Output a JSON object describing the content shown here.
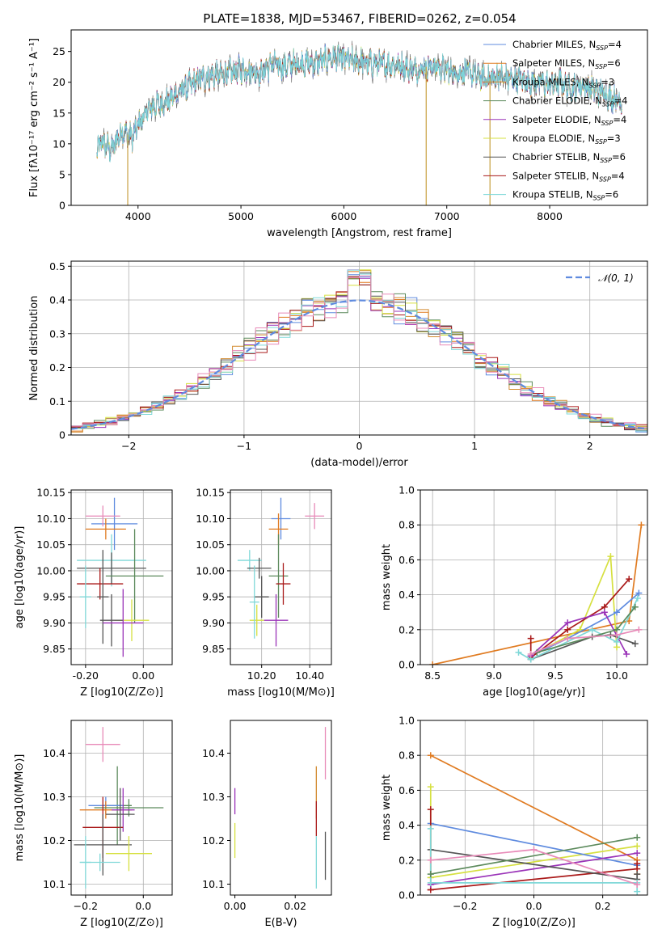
{
  "title": "PLATE=1838, MJD=53467, FIBERID=0262, z=0.054",
  "colors": [
    "#5f8bdf",
    "#e07b21",
    "#d28a2f",
    "#5c8a5c",
    "#9a33b8",
    "#d6e040",
    "#555555",
    "#aa1a1a",
    "#7fd8d8",
    "#e88ab8"
  ],
  "chart_data": [
    {
      "id": "spectrum",
      "type": "line",
      "xlabel": "wavelength [Angstrom, rest frame]",
      "ylabel": "Flux [fλ10⁻¹⁷ erg cm⁻² s⁻¹ A⁻¹]",
      "xlim": [
        3350,
        8950
      ],
      "ylim": [
        0,
        28.5
      ],
      "xticks": [
        4000,
        5000,
        6000,
        7000,
        8000
      ],
      "yticks": [
        0,
        5,
        10,
        15,
        20,
        25
      ],
      "grid": false,
      "legend_position": "right",
      "continuum_x": [
        3600,
        3650,
        3700,
        3750,
        3800,
        3850,
        3900,
        3950,
        4000,
        4100,
        4200,
        4300,
        4400,
        4500,
        4600,
        4700,
        4800,
        4900,
        5000,
        5100,
        5200,
        5300,
        5400,
        5500,
        5600,
        5700,
        5800,
        5900,
        6000,
        6100,
        6200,
        6300,
        6400,
        6500,
        6600,
        6700,
        6800,
        6900,
        7000,
        7100,
        7200,
        7300,
        7400,
        7500,
        7600,
        7700,
        7800,
        7900,
        8000,
        8100,
        8200,
        8300,
        8400,
        8500,
        8600,
        8700
      ],
      "continuum_y": [
        8.5,
        10.5,
        9.5,
        9,
        11,
        12,
        11.5,
        11,
        13,
        15.5,
        16.5,
        17,
        18.5,
        19.5,
        20.5,
        21,
        21.2,
        21.5,
        22,
        22,
        21.5,
        23,
        22.5,
        23,
        23.2,
        23,
        23.5,
        24,
        23.8,
        23.5,
        23.2,
        23,
        22.8,
        23,
        22.5,
        22,
        22.5,
        22.5,
        22,
        21.5,
        21.8,
        21,
        20.5,
        21,
        20.5,
        20.5,
        20,
        20,
        19.5,
        20,
        19,
        19.5,
        19,
        18.5,
        17.5,
        17
      ],
      "series": [
        {
          "name": "Chabrier MILES, N_SSP=4"
        },
        {
          "name": "Salpeter MILES, N_SSP=6"
        },
        {
          "name": "Kroupa MILES, N_SSP=3"
        },
        {
          "name": "Chabrier ELODIE, N_SSP=4"
        },
        {
          "name": "Salpeter ELODIE, N_SSP=4"
        },
        {
          "name": "Kroupa ELODIE, N_SSP=3"
        },
        {
          "name": "Chabrier STELIB, N_SSP=6"
        },
        {
          "name": "Salpeter STELIB, N_SSP=4"
        },
        {
          "name": "Kroupa STELIB, N_SSP=6"
        }
      ],
      "dropouts": [
        [
          3900,
          0
        ],
        [
          6800,
          0
        ],
        [
          7420,
          0
        ]
      ]
    },
    {
      "id": "residuals",
      "type": "histogram",
      "xlabel": "(data-model)/error",
      "ylabel": "Normed distribution",
      "xlim": [
        -2.5,
        2.5
      ],
      "ylim": [
        0,
        0.515
      ],
      "xticks": [
        -2,
        -1,
        0,
        1,
        2
      ],
      "yticks": [
        0.0,
        0.1,
        0.2,
        0.3,
        0.4,
        0.5
      ],
      "grid": true,
      "legend_position": "top-right",
      "reference_curve": {
        "name": "N(0,1)",
        "type": "gaussian",
        "mu": 0,
        "sigma": 1
      },
      "bin_width": 0.1,
      "n_series": 10
    },
    {
      "id": "age_vs_Z",
      "type": "errorbar",
      "xlabel": "Z [log10(Z/Z⊙)]",
      "ylabel": "age [log10(age/yr)]",
      "xlim": [
        -0.25,
        0.1
      ],
      "ylim": [
        9.82,
        10.155
      ],
      "xticks": [
        -0.2,
        0.0
      ],
      "yticks": [
        9.85,
        9.9,
        9.95,
        10.0,
        10.05,
        10.1,
        10.15
      ],
      "grid": true,
      "points": [
        {
          "x": -0.1,
          "y": 10.09,
          "xerr": 0.08,
          "yerr": 0.05,
          "c": 0
        },
        {
          "x": -0.13,
          "y": 10.08,
          "xerr": 0.07,
          "yerr": 0.02,
          "c": 1
        },
        {
          "x": -0.14,
          "y": 10.105,
          "xerr": 0.06,
          "yerr": 0.02,
          "c": 9
        },
        {
          "x": -0.11,
          "y": 10.02,
          "xerr": 0.12,
          "yerr": 0.05,
          "c": 8
        },
        {
          "x": -0.11,
          "y": 10.005,
          "xerr": 0.12,
          "yerr": 0.03,
          "c": 6
        },
        {
          "x": -0.03,
          "y": 9.99,
          "xerr": 0.1,
          "yerr": 0.09,
          "c": 3
        },
        {
          "x": -0.15,
          "y": 9.975,
          "xerr": 0.08,
          "yerr": 0.03,
          "c": 7
        },
        {
          "x": -0.14,
          "y": 9.95,
          "xerr": 0.02,
          "yerr": 0.09,
          "c": 6
        },
        {
          "x": -0.04,
          "y": 9.905,
          "xerr": 0.06,
          "yerr": 0.04,
          "c": 5
        },
        {
          "x": -0.11,
          "y": 9.905,
          "xerr": 0.04,
          "yerr": 0.05,
          "c": 6
        },
        {
          "x": -0.07,
          "y": 9.9,
          "xerr": 0.07,
          "yerr": 0.065,
          "c": 4
        },
        {
          "x": -0.2,
          "y": 9.95,
          "xerr": 0.02,
          "yerr": 0.06,
          "c": 8
        }
      ]
    },
    {
      "id": "age_vs_mass",
      "type": "errorbar",
      "xlabel": "mass [log10(M/M⊙)]",
      "ylabel": "",
      "xlim": [
        10.07,
        10.49
      ],
      "ylim": [
        9.82,
        10.155
      ],
      "xticks": [
        10.2,
        10.4
      ],
      "yticks": [
        9.85,
        9.9,
        9.95,
        10.0,
        10.05,
        10.1,
        10.15
      ],
      "grid": true,
      "points": [
        {
          "x": 10.28,
          "y": 10.1,
          "xerr": 0.04,
          "yerr": 0.04,
          "c": 0
        },
        {
          "x": 10.27,
          "y": 10.08,
          "xerr": 0.04,
          "yerr": 0.03,
          "c": 1
        },
        {
          "x": 10.42,
          "y": 10.105,
          "xerr": 0.04,
          "yerr": 0.025,
          "c": 9
        },
        {
          "x": 10.15,
          "y": 10.02,
          "xerr": 0.05,
          "yerr": 0.02,
          "c": 8
        },
        {
          "x": 10.19,
          "y": 10.005,
          "xerr": 0.05,
          "yerr": 0.02,
          "c": 6
        },
        {
          "x": 10.27,
          "y": 9.99,
          "xerr": 0.04,
          "yerr": 0.08,
          "c": 3
        },
        {
          "x": 10.29,
          "y": 9.975,
          "xerr": 0.03,
          "yerr": 0.04,
          "c": 7
        },
        {
          "x": 10.2,
          "y": 9.95,
          "xerr": 0.03,
          "yerr": 0.04,
          "c": 6
        },
        {
          "x": 10.18,
          "y": 9.905,
          "xerr": 0.03,
          "yerr": 0.03,
          "c": 5
        },
        {
          "x": 10.26,
          "y": 9.905,
          "xerr": 0.05,
          "yerr": 0.05,
          "c": 4
        },
        {
          "x": 10.17,
          "y": 9.94,
          "xerr": 0.02,
          "yerr": 0.07,
          "c": 8
        }
      ]
    },
    {
      "id": "mass_weight_vs_age",
      "type": "line",
      "xlabel": "age [log10(age/yr)]",
      "ylabel": "mass weight",
      "xlim": [
        8.4,
        10.25
      ],
      "ylim": [
        0,
        1
      ],
      "xticks": [
        8.5,
        9.0,
        9.5,
        10.0
      ],
      "yticks": [
        0.0,
        0.2,
        0.4,
        0.6,
        0.8,
        1.0
      ],
      "grid": true,
      "series": [
        {
          "c": 1,
          "x": [
            8.5,
            10.1,
            10.2
          ],
          "y": [
            0.0,
            0.25,
            0.8
          ]
        },
        {
          "c": 5,
          "x": [
            9.3,
            9.7,
            9.95,
            10.0
          ],
          "y": [
            0.05,
            0.2,
            0.62,
            0.1
          ]
        },
        {
          "c": 0,
          "x": [
            9.3,
            9.6,
            10.0,
            10.18
          ],
          "y": [
            0.05,
            0.15,
            0.3,
            0.41
          ]
        },
        {
          "c": 7,
          "x": [
            9.3,
            9.3,
            9.6,
            9.9,
            10.1
          ],
          "y": [
            0.15,
            0.04,
            0.2,
            0.33,
            0.49
          ]
        },
        {
          "c": 4,
          "x": [
            9.3,
            9.6,
            9.9,
            10.08
          ],
          "y": [
            0.05,
            0.24,
            0.3,
            0.06
          ]
        },
        {
          "c": 6,
          "x": [
            9.3,
            9.8,
            9.95,
            10.15
          ],
          "y": [
            0.03,
            0.16,
            0.17,
            0.12
          ]
        },
        {
          "c": 8,
          "x": [
            9.2,
            9.3,
            9.8,
            10.0,
            10.17
          ],
          "y": [
            0.07,
            0.03,
            0.2,
            0.13,
            0.38
          ]
        },
        {
          "c": 3,
          "x": [
            9.35,
            10.0,
            10.15
          ],
          "y": [
            0.07,
            0.2,
            0.33
          ]
        },
        {
          "c": 9,
          "x": [
            9.3,
            9.6,
            10.0,
            10.18
          ],
          "y": [
            0.06,
            0.15,
            0.17,
            0.2
          ]
        }
      ]
    },
    {
      "id": "mass_vs_Z",
      "type": "errorbar",
      "xlabel": "Z [log10(Z/Z⊙)]",
      "ylabel": "mass [log10(M/M⊙)]",
      "xlim": [
        -0.25,
        0.1
      ],
      "ylim": [
        10.075,
        10.475
      ],
      "xticks": [
        -0.2,
        0.0
      ],
      "yticks": [
        10.1,
        10.2,
        10.3,
        10.4
      ],
      "grid": true,
      "points": [
        {
          "x": -0.14,
          "y": 10.42,
          "xerr": 0.06,
          "yerr": 0.04,
          "c": 9
        },
        {
          "x": -0.09,
          "y": 10.28,
          "xerr": 0.05,
          "yerr": 0.09,
          "c": 3
        },
        {
          "x": -0.13,
          "y": 10.28,
          "xerr": 0.06,
          "yerr": 0.02,
          "c": 0
        },
        {
          "x": -0.13,
          "y": 10.27,
          "xerr": 0.09,
          "yerr": 0.02,
          "c": 1
        },
        {
          "x": -0.05,
          "y": 10.275,
          "xerr": 0.12,
          "yerr": 0.02,
          "c": 3
        },
        {
          "x": -0.07,
          "y": 10.27,
          "xerr": 0.04,
          "yerr": 0.05,
          "c": 4
        },
        {
          "x": -0.14,
          "y": 10.23,
          "xerr": 0.07,
          "yerr": 0.07,
          "c": 7
        },
        {
          "x": -0.08,
          "y": 10.26,
          "xerr": 0.05,
          "yerr": 0.06,
          "c": 6
        },
        {
          "x": -0.14,
          "y": 10.19,
          "xerr": 0.1,
          "yerr": 0.07,
          "c": 6
        },
        {
          "x": -0.05,
          "y": 10.17,
          "xerr": 0.08,
          "yerr": 0.04,
          "c": 5
        },
        {
          "x": -0.15,
          "y": 10.15,
          "xerr": 0.07,
          "yerr": 0.02,
          "c": 8
        },
        {
          "x": -0.2,
          "y": 10.15,
          "xerr": 0.02,
          "yerr": 0.06,
          "c": 8
        }
      ]
    },
    {
      "id": "mass_vs_EBV",
      "type": "errorbar",
      "xlabel": "E(B-V)",
      "ylabel": "",
      "xlim": [
        -0.0015,
        0.032
      ],
      "ylim": [
        10.075,
        10.475
      ],
      "xticks": [
        0.0,
        0.02
      ],
      "yticks": [
        10.1,
        10.2,
        10.3,
        10.4
      ],
      "grid": false,
      "points": [
        {
          "x": 0.0,
          "y": 10.29,
          "xerr": 0,
          "yerr": 0.03,
          "c": 4
        },
        {
          "x": 0.0,
          "y": 10.2,
          "xerr": 0,
          "yerr": 0.04,
          "c": 5
        },
        {
          "x": 0.027,
          "y": 10.31,
          "xerr": 0,
          "yerr": 0.06,
          "c": 2
        },
        {
          "x": 0.027,
          "y": 10.25,
          "xerr": 0,
          "yerr": 0.04,
          "c": 7
        },
        {
          "x": 0.027,
          "y": 10.15,
          "xerr": 0,
          "yerr": 0.06,
          "c": 8
        },
        {
          "x": 0.03,
          "y": 10.4,
          "xerr": 0,
          "yerr": 0.06,
          "c": 9
        },
        {
          "x": 0.03,
          "y": 10.165,
          "xerr": 0,
          "yerr": 0.055,
          "c": 6
        }
      ]
    },
    {
      "id": "mass_weight_vs_Z",
      "type": "line",
      "xlabel": "Z [log10(Z/Z⊙)]",
      "ylabel": "mass weight",
      "xlim": [
        -0.33,
        0.33
      ],
      "ylim": [
        0,
        1
      ],
      "xticks": [
        -0.2,
        0.0,
        0.2
      ],
      "yticks": [
        0.0,
        0.2,
        0.4,
        0.6,
        0.8,
        1.0
      ],
      "grid": true,
      "series": [
        {
          "c": 1,
          "x": [
            -0.3,
            0.3,
            0.3
          ],
          "y": [
            0.8,
            0.2,
            0.12
          ]
        },
        {
          "c": 5,
          "x": [
            -0.3,
            -0.3
          ],
          "y": [
            0.62,
            0.1
          ]
        },
        {
          "c": 5,
          "x": [
            -0.3,
            0.3
          ],
          "y": [
            0.1,
            0.28
          ]
        },
        {
          "c": 0,
          "x": [
            -0.3,
            0.3
          ],
          "y": [
            0.41,
            0.17
          ]
        },
        {
          "c": 7,
          "x": [
            -0.3,
            -0.3
          ],
          "y": [
            0.49,
            0.03
          ]
        },
        {
          "c": 7,
          "x": [
            -0.3,
            0.3,
            0.3
          ],
          "y": [
            0.03,
            0.15,
            0.18
          ]
        },
        {
          "c": 4,
          "x": [
            -0.3,
            0.3
          ],
          "y": [
            0.06,
            0.24
          ]
        },
        {
          "c": 6,
          "x": [
            -0.3,
            0.3,
            0.3
          ],
          "y": [
            0.26,
            0.09,
            0.12
          ]
        },
        {
          "c": 8,
          "x": [
            -0.3,
            -0.3,
            0.3,
            0.3
          ],
          "y": [
            0.38,
            0.07,
            0.07,
            0.02
          ]
        },
        {
          "c": 3,
          "x": [
            -0.3,
            0.3
          ],
          "y": [
            0.12,
            0.33
          ]
        },
        {
          "c": 9,
          "x": [
            -0.3,
            0.0,
            0.3
          ],
          "y": [
            0.2,
            0.26,
            0.06
          ]
        }
      ]
    }
  ]
}
